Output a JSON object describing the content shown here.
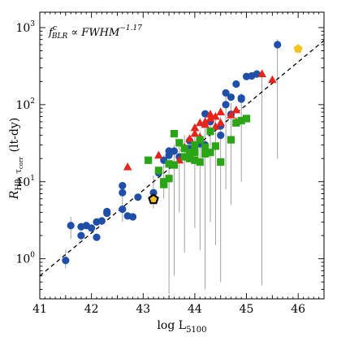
{
  "chart_data": {
    "type": "scatter",
    "annotation": {
      "main": "f",
      "sup": "c",
      "sub": "BLR",
      "rest": " ∝ FWHM",
      "exp": "−1.17"
    },
    "xlabel": {
      "main": "log L",
      "sub": "5100"
    },
    "ylabel": {
      "main": "R",
      "sub": "Hβ, τ",
      "subsub": "corr",
      "unit": "(lt-dy)"
    },
    "xlim": [
      41.0,
      46.5
    ],
    "ylim_log10": [
      -0.52,
      3.2
    ],
    "y_scale": "log",
    "xticks": [
      41,
      42,
      43,
      44,
      45,
      46
    ],
    "yticks": [
      {
        "value": 1,
        "base": "10",
        "exp": "0"
      },
      {
        "value": 10,
        "base": "10",
        "exp": "1"
      },
      {
        "value": 100,
        "base": "10",
        "exp": "2"
      },
      {
        "value": 1000,
        "base": "10",
        "exp": "3"
      }
    ],
    "fit_line": {
      "style": "dashed",
      "color": "#000000",
      "x": [
        41.0,
        46.5
      ],
      "y": [
        0.6,
        680
      ]
    },
    "colors": {
      "blue": "#1f4fa8",
      "red": "#e8231c",
      "green": "#2aa516",
      "gold": "#f6c21b",
      "errorbar": "#8a8a8a"
    },
    "series": [
      {
        "marker": "circle",
        "color": "#1f4fa8",
        "points": [
          [
            41.5,
            0.95
          ],
          [
            41.6,
            2.7
          ],
          [
            41.8,
            2.0
          ],
          [
            41.8,
            2.6
          ],
          [
            41.9,
            2.7
          ],
          [
            42.0,
            2.5
          ],
          [
            42.1,
            3.0
          ],
          [
            42.1,
            1.9
          ],
          [
            42.2,
            3.1
          ],
          [
            42.3,
            3.9
          ],
          [
            42.3,
            4.1
          ],
          [
            42.6,
            4.4
          ],
          [
            42.6,
            7.2
          ],
          [
            42.6,
            8.9
          ],
          [
            42.7,
            3.6
          ],
          [
            42.8,
            3.5
          ],
          [
            42.9,
            6.3
          ],
          [
            43.2,
            7.2
          ],
          [
            43.3,
            13
          ],
          [
            43.4,
            19
          ],
          [
            43.5,
            22
          ],
          [
            43.5,
            25
          ],
          [
            43.6,
            25
          ],
          [
            43.7,
            21
          ],
          [
            43.9,
            27
          ],
          [
            43.9,
            34
          ],
          [
            44.0,
            25
          ],
          [
            44.1,
            31
          ],
          [
            44.2,
            30
          ],
          [
            44.2,
            76
          ],
          [
            44.3,
            60
          ],
          [
            44.5,
            40
          ],
          [
            44.5,
            53
          ],
          [
            44.6,
            100
          ],
          [
            44.6,
            142
          ],
          [
            44.7,
            125
          ],
          [
            44.7,
            75
          ],
          [
            44.8,
            185
          ],
          [
            44.9,
            118
          ],
          [
            44.9,
            122
          ],
          [
            45.0,
            232
          ],
          [
            45.1,
            236
          ],
          [
            45.2,
            250
          ],
          [
            45.6,
            600
          ]
        ]
      },
      {
        "marker": "triangle",
        "color": "#e8231c",
        "points": [
          [
            42.7,
            15.5
          ],
          [
            43.3,
            22
          ],
          [
            43.7,
            19
          ],
          [
            43.8,
            28
          ],
          [
            43.9,
            36
          ],
          [
            44.0,
            42
          ],
          [
            44.0,
            50
          ],
          [
            44.1,
            38
          ],
          [
            44.1,
            58
          ],
          [
            44.2,
            55
          ],
          [
            44.2,
            60
          ],
          [
            44.3,
            66
          ],
          [
            44.3,
            75
          ],
          [
            44.4,
            52
          ],
          [
            44.4,
            70
          ],
          [
            44.5,
            58
          ],
          [
            44.5,
            80
          ],
          [
            44.7,
            73
          ],
          [
            44.8,
            85
          ],
          [
            44.8,
            60
          ],
          [
            45.3,
            250
          ],
          [
            45.5,
            210
          ]
        ]
      },
      {
        "marker": "square",
        "color": "#2aa516",
        "points": [
          [
            43.1,
            19
          ],
          [
            43.3,
            14
          ],
          [
            43.4,
            10
          ],
          [
            43.4,
            9.2
          ],
          [
            43.5,
            17
          ],
          [
            43.5,
            11
          ],
          [
            43.6,
            42
          ],
          [
            43.6,
            16.5
          ],
          [
            43.7,
            32
          ],
          [
            43.8,
            21
          ],
          [
            43.8,
            27
          ],
          [
            43.9,
            24
          ],
          [
            43.9,
            20
          ],
          [
            43.9,
            22
          ],
          [
            44.0,
            30
          ],
          [
            44.0,
            24
          ],
          [
            44.0,
            19
          ],
          [
            44.1,
            35
          ],
          [
            44.1,
            18
          ],
          [
            44.2,
            28
          ],
          [
            44.2,
            23
          ],
          [
            44.3,
            45
          ],
          [
            44.3,
            24
          ],
          [
            44.4,
            29
          ],
          [
            44.5,
            18
          ],
          [
            44.7,
            35
          ],
          [
            44.8,
            58
          ],
          [
            44.9,
            62
          ],
          [
            45.0,
            66
          ]
        ]
      },
      {
        "marker": "pentagon",
        "color": "#f6c21b",
        "points": [
          [
            43.2,
            5.9
          ],
          [
            46.0,
            530
          ]
        ]
      }
    ],
    "errorbars": [
      {
        "x": 41.5,
        "y1": 0.75,
        "y2": 1.3
      },
      {
        "x": 41.6,
        "y1": 1.8,
        "y2": 3.5
      },
      {
        "x": 42.6,
        "y1": 3.0,
        "y2": 10
      },
      {
        "x": 43.2,
        "y1": 4.5,
        "y2": 12
      },
      {
        "x": 43.4,
        "y1": 6.0,
        "y2": 22
      },
      {
        "x": 43.5,
        "y1": 0.35,
        "y2": 25
      },
      {
        "x": 43.6,
        "y1": 0.6,
        "y2": 30
      },
      {
        "x": 43.7,
        "y1": 4.0,
        "y2": 32
      },
      {
        "x": 43.8,
        "y1": 1.2,
        "y2": 40
      },
      {
        "x": 44.0,
        "y1": 2.5,
        "y2": 42
      },
      {
        "x": 44.1,
        "y1": 1.3,
        "y2": 45
      },
      {
        "x": 44.2,
        "y1": 0.4,
        "y2": 60
      },
      {
        "x": 44.3,
        "y1": 3.0,
        "y2": 80
      },
      {
        "x": 44.4,
        "y1": 1.5,
        "y2": 75
      },
      {
        "x": 44.5,
        "y1": 0.5,
        "y2": 70
      },
      {
        "x": 44.6,
        "y1": 8.0,
        "y2": 130
      },
      {
        "x": 44.7,
        "y1": 5.0,
        "y2": 105
      },
      {
        "x": 44.9,
        "y1": 10.0,
        "y2": 140
      },
      {
        "x": 45.3,
        "y1": 0.45,
        "y2": 260
      },
      {
        "x": 45.6,
        "y1": 20,
        "y2": 700
      }
    ]
  }
}
